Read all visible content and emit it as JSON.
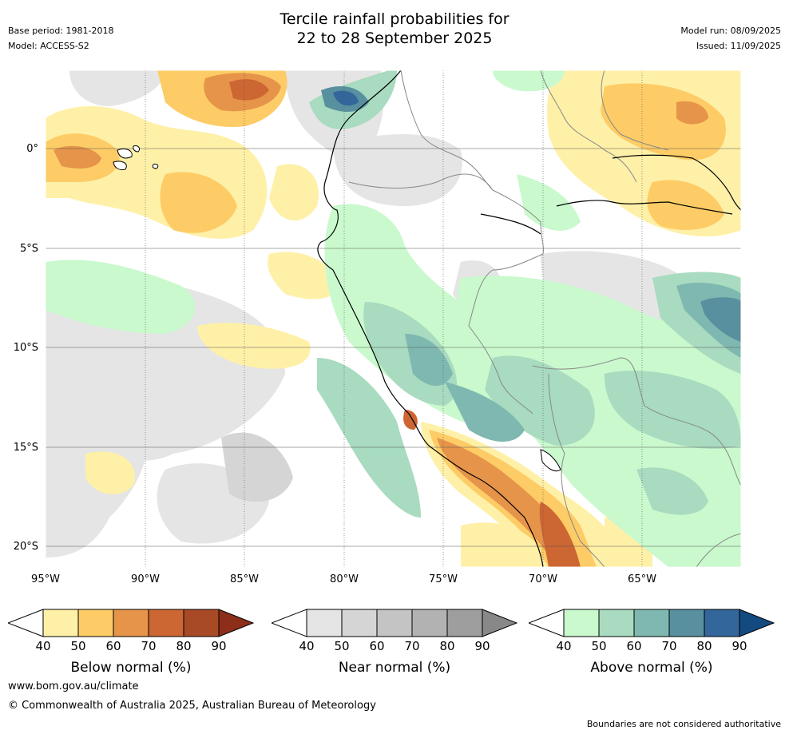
{
  "header": {
    "title_line1": "Tercile rainfall probabilities for",
    "title_line2": "22 to 28 September 2025",
    "base_period": "Base period: 1981-2018",
    "model": "Model: ACCESS-S2",
    "model_run": "Model run: 08/09/2025",
    "issued": "Issued: 11/09/2025"
  },
  "map": {
    "lat_labels": [
      "0°",
      "5°S",
      "10°S",
      "15°S",
      "20°S"
    ],
    "lon_labels": [
      "95°W",
      "90°W",
      "85°W",
      "80°W",
      "75°W",
      "70°W",
      "65°W"
    ],
    "colors": {
      "below": [
        "#fff0a8",
        "#fdcc66",
        "#e69449",
        "#cc6633",
        "#a84a26",
        "#8c2e1a"
      ],
      "near": [
        "#e5e5e5",
        "#d5d5d5",
        "#c4c4c4",
        "#b2b2b2",
        "#9e9e9e",
        "#888888"
      ],
      "above": [
        "#c9f9cd",
        "#a8dbbf",
        "#7fb8b0",
        "#5890a0",
        "#33669a",
        "#134a80"
      ],
      "land_border": "#888888",
      "coastline": "#000000"
    }
  },
  "legend": {
    "below": {
      "label": "Below normal (%)",
      "ticks": [
        "40",
        "50",
        "60",
        "70",
        "80",
        "90"
      ]
    },
    "near": {
      "label": "Near normal (%)",
      "ticks": [
        "40",
        "50",
        "60",
        "70",
        "80",
        "90"
      ]
    },
    "above": {
      "label": "Above normal (%)",
      "ticks": [
        "40",
        "50",
        "60",
        "70",
        "80",
        "90"
      ]
    }
  },
  "footer": {
    "url": "www.bom.gov.au/climate",
    "copyright": "© Commonwealth of Australia 2025, Australian Bureau of Meteorology",
    "disclaimer": "Boundaries are not considered authoritative"
  }
}
